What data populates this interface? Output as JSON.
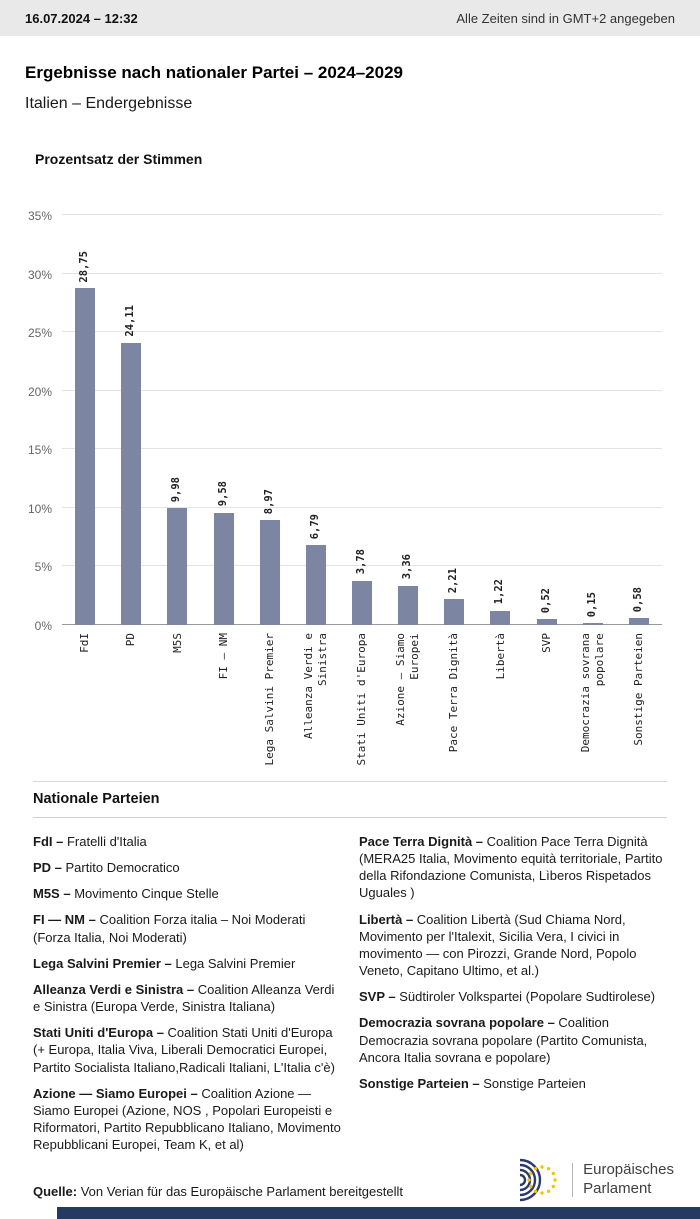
{
  "topbar": {
    "datetime": "16.07.2024 – 12:32",
    "timezone_note": "Alle Zeiten sind in GMT+2 angegeben"
  },
  "header": {
    "title": "Ergebnisse nach nationaler Partei – 2024–2029",
    "subtitle": "Italien – Endergebnisse"
  },
  "chart_data": {
    "type": "bar",
    "title": "Prozentsatz der Stimmen",
    "categories": [
      "FdI",
      "PD",
      "M5S",
      "FI — NM",
      "Lega Salvini Premier",
      "Alleanza Verdi e Sinistra",
      "Stati Uniti d'Europa",
      "Azione — Siamo Europei",
      "Pace Terra Dignità",
      "Libertà",
      "SVP",
      "Democrazia sovrana popolare",
      "Sonstige Parteien"
    ],
    "category_labels": [
      "FdI",
      "PD",
      "M5S",
      "FI — NM",
      "Lega Salvini Premier",
      "Alleanza Verdi e\nSinistra",
      "Stati Uniti d'Europa",
      "Azione — Siamo\nEuropei",
      "Pace Terra Dignità",
      "Libertà",
      "SVP",
      "Democrazia sovrana\npopolare",
      "Sonstige Parteien"
    ],
    "values": [
      28.75,
      24.11,
      9.98,
      9.58,
      8.97,
      6.79,
      3.78,
      3.36,
      2.21,
      1.22,
      0.52,
      0.15,
      0.58
    ],
    "value_labels": [
      "28,75",
      "24,11",
      "9,98",
      "9,58",
      "8,97",
      "6,79",
      "3,78",
      "3,36",
      "2,21",
      "1,22",
      "0,52",
      "0,15",
      "0,58"
    ],
    "ylim": [
      0,
      35
    ],
    "yticks": [
      "0%",
      "5%",
      "10%",
      "15%",
      "20%",
      "25%",
      "30%",
      "35%"
    ],
    "ylabel": "",
    "xlabel": "",
    "grid": true,
    "legend_position": "none",
    "bar_color": "#7c85a2"
  },
  "parties_section": {
    "heading": "Nationale Parteien",
    "columns": [
      [
        {
          "name": "FdI –",
          "desc": "Fratelli d'Italia"
        },
        {
          "name": "PD –",
          "desc": "Partito Democratico"
        },
        {
          "name": "M5S –",
          "desc": "Movimento Cinque Stelle"
        },
        {
          "name": "FI — NM –",
          "desc": "Coalition Forza italia – Noi Moderati (Forza Italia, Noi Moderati)"
        },
        {
          "name": "Lega Salvini Premier –",
          "desc": "Lega Salvini Premier"
        },
        {
          "name": "Alleanza Verdi e Sinistra –",
          "desc": "Coalition Alleanza Verdi e Sinistra (Europa Verde, Sinistra Italiana)"
        },
        {
          "name": "Stati Uniti d'Europa –",
          "desc": "Coalition Stati Uniti d'Europa (+ Europa, Italia Viva, Liberali Democratici Europei, Partito Socialista Italiano,Radicali Italiani, L'Italia c'è)"
        },
        {
          "name": "Azione — Siamo Europei –",
          "desc": "Coalition Azione — Siamo Europei (Azione, NOS , Popolari Europeisti e Riformatori, Partito Repubblicano Italiano, Movimento Repubblicani Europei, Team K, et al)"
        }
      ],
      [
        {
          "name": "Pace Terra Dignità –",
          "desc": "Coalition Pace Terra Dignità (MERA25 Italia, Movimento equità territoriale, Partito della Rifondazione Comunista, Lìberos Rispetados Uguales )"
        },
        {
          "name": "Libertà –",
          "desc": "Coalition Libertà (Sud Chiama Nord, Movimento per l'Italexit, Sicilia Vera, I civici in movimento — con Pirozzi, Grande Nord, Popolo Veneto, Capitano Ultimo, et al.)"
        },
        {
          "name": "SVP –",
          "desc": "Südtiroler Volkspartei (Popolare Sudtirolese)"
        },
        {
          "name": "Democrazia sovrana popolare –",
          "desc": "Coalition Democrazia sovrana popolare (Partito Comunista, Ancora Italia sovrana e popolare)"
        },
        {
          "name": "Sonstige Parteien –",
          "desc": "Sonstige Parteien"
        }
      ]
    ]
  },
  "footer": {
    "source_label": "Quelle:",
    "source_text": " Von Verian für das Europäische Parlament bereitgestellt",
    "logo_line1": "Europäisches",
    "logo_line2": "Parlament"
  },
  "colors": {
    "bar": "#7c85a2",
    "topbar_bg": "#e9e9e9",
    "bottom_strip": "#263a61",
    "logo_blue": "#2b3a6e",
    "star_yellow": "#f2c500"
  }
}
